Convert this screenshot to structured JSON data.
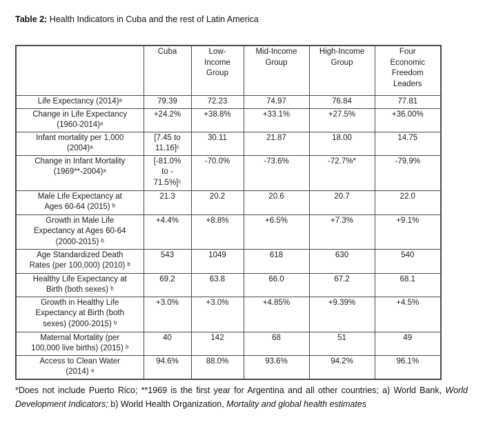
{
  "title": {
    "label": "Table 2:",
    "text": " Health Indicators in Cuba and the rest of Latin America"
  },
  "table": {
    "columns": [
      "",
      "Cuba",
      "Low-\nIncome\nGroup",
      "Mid-Income\nGroup",
      "High-Income\nGroup",
      "Four\nEconomic\nFreedom\nLeaders"
    ],
    "rows": [
      {
        "label": "Life Expectancy (2014)ᵃ",
        "values": [
          "79.39",
          "72.23",
          "74.97",
          "76.84",
          "77.81"
        ]
      },
      {
        "label": "Change in Life Expectancy\n(1960-2014)ᵃ",
        "values": [
          "+24.2%",
          "+38.8%",
          "+33.1%",
          "+27.5%",
          "+36.00%"
        ]
      },
      {
        "label": "Infant mortality per 1,000\n(2004)ᵃ",
        "values": [
          "[7.45 to\n11.16]ᶜ",
          "30.11",
          "21.87",
          "18.00",
          "14.75"
        ]
      },
      {
        "label": "Change in Infant Mortality\n(1969**-2004)ᵃ",
        "values": [
          "[-81.0%\nto -\n71.5%]ᶜ",
          "-70.0%",
          "-73.6%",
          "-72.7%*",
          "-79.9%"
        ]
      },
      {
        "label": "Male Life Expectancy at\nAges 60-64 (2015) ᵇ",
        "values": [
          "21.3",
          "20.2",
          "20.6",
          "20.7",
          "22.0"
        ]
      },
      {
        "label": "Growth in Male Life\nExpectancy at Ages 60-64\n(2000-2015) ᵇ",
        "values": [
          "+4.4%",
          "+8.8%",
          "+6.5%",
          "+7.3%",
          "+9.1%"
        ]
      },
      {
        "label": "Age Standardized Death\nRates (per 100,000) (2010) ᵇ",
        "values": [
          "543",
          "1049",
          "618",
          "630",
          "540"
        ]
      },
      {
        "label": "Healthy Life Expectancy at\nBirth (both sexes) ᵇ",
        "values": [
          "69.2",
          "63.8",
          "66.0",
          "67.2",
          "68.1"
        ]
      },
      {
        "label": "Growth in Healthy Life\nExpectancy at Birth (both\nsexes) (2000-2015) ᵇ",
        "values": [
          "+3.0%",
          "+3.0%",
          "+4.85%",
          "+9.39%",
          "+4.5%"
        ]
      },
      {
        "label": "Maternal Mortality (per\n100,000 live births) (2015) ᵇ",
        "values": [
          "40",
          "142",
          "68",
          "51",
          "49"
        ]
      },
      {
        "label": "Access to Clean Water\n(2014) ᵃ",
        "values": [
          "94.6%",
          "88.0%",
          "93.6%",
          "94.2%",
          "96.1%"
        ]
      }
    ]
  },
  "footnote": {
    "segments": [
      {
        "text": "*Does not include Puerto Rico; **1969 is the first year for Argentina and all other countries; a) World Bank, ",
        "italic": false
      },
      {
        "text": "World Development Indicators;",
        "italic": true
      },
      {
        "text": " b) World Health Organization, ",
        "italic": false
      },
      {
        "text": "Mortality and global health estimates",
        "italic": true
      }
    ]
  }
}
